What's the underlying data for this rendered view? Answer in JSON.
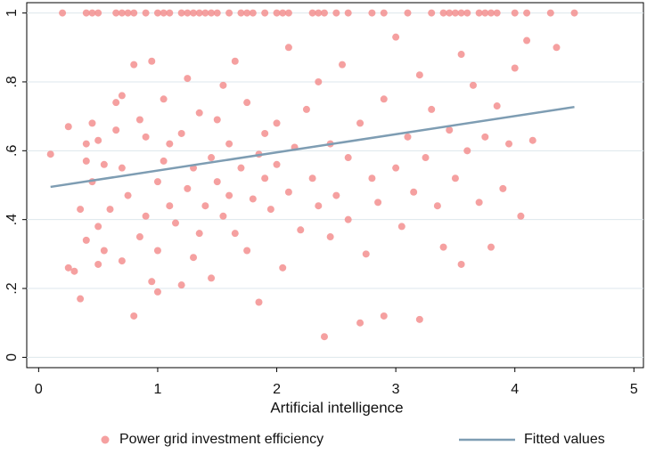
{
  "chart_data": {
    "type": "scatter",
    "xlabel": "Artificial intelligence",
    "xlim": [
      -0.1,
      5.08
    ],
    "ylim": [
      -0.03,
      1.03
    ],
    "xticks": [
      0,
      1,
      2,
      3,
      4,
      5
    ],
    "yticks": [
      0,
      {
        "value": 0.2,
        "label": ".2"
      },
      {
        "value": 0.4,
        "label": ".4"
      },
      {
        "value": 0.6,
        "label": ".6"
      },
      {
        "value": 0.8,
        "label": ".8"
      },
      1
    ],
    "grid": true,
    "legend": "bottom",
    "series": [
      {
        "name": "Power grid investment efficiency",
        "color": "#f38f8f",
        "type": "scatter",
        "x": [
          0.2,
          0.4,
          0.45,
          0.5,
          0.65,
          0.7,
          0.75,
          0.8,
          0.9,
          1.0,
          1.05,
          1.1,
          1.2,
          1.25,
          1.3,
          1.35,
          1.4,
          1.45,
          1.5,
          1.6,
          1.7,
          1.75,
          1.8,
          1.9,
          2.0,
          2.05,
          2.1,
          2.3,
          2.35,
          2.4,
          2.5,
          2.6,
          2.8,
          2.9,
          3.1,
          3.3,
          3.4,
          3.45,
          3.5,
          3.55,
          3.6,
          3.7,
          3.75,
          3.8,
          3.85,
          4.0,
          4.1,
          4.3,
          4.5,
          0.1,
          0.25,
          0.25,
          0.3,
          0.35,
          0.35,
          0.4,
          0.4,
          0.4,
          0.45,
          0.45,
          0.5,
          0.5,
          0.5,
          0.55,
          0.55,
          0.6,
          0.65,
          0.65,
          0.7,
          0.7,
          0.7,
          0.75,
          0.8,
          0.8,
          0.85,
          0.85,
          0.9,
          0.9,
          0.95,
          0.95,
          1.0,
          1.0,
          1.0,
          1.05,
          1.05,
          1.1,
          1.1,
          1.15,
          1.2,
          1.2,
          1.25,
          1.25,
          1.3,
          1.3,
          1.35,
          1.35,
          1.4,
          1.45,
          1.45,
          1.5,
          1.5,
          1.55,
          1.55,
          1.6,
          1.6,
          1.65,
          1.65,
          1.7,
          1.75,
          1.75,
          1.8,
          1.85,
          1.85,
          1.9,
          1.9,
          1.95,
          2.0,
          2.0,
          2.05,
          2.1,
          2.1,
          2.15,
          2.2,
          2.25,
          2.3,
          2.35,
          2.35,
          2.4,
          2.45,
          2.45,
          2.5,
          2.55,
          2.6,
          2.6,
          2.7,
          2.7,
          2.75,
          2.8,
          2.85,
          2.9,
          2.9,
          3.0,
          3.0,
          3.05,
          3.1,
          3.15,
          3.2,
          3.2,
          3.25,
          3.3,
          3.35,
          3.4,
          3.45,
          3.5,
          3.55,
          3.55,
          3.6,
          3.65,
          3.7,
          3.75,
          3.8,
          3.85,
          3.9,
          3.95,
          4.0,
          4.05,
          4.1,
          4.15,
          4.35
        ],
        "values": [
          1,
          1,
          1,
          1,
          1,
          1,
          1,
          1,
          1,
          1,
          1,
          1,
          1,
          1,
          1,
          1,
          1,
          1,
          1,
          1,
          1,
          1,
          1,
          1,
          1,
          1,
          1,
          1,
          1,
          1,
          1,
          1,
          1,
          1,
          1,
          1,
          1,
          1,
          1,
          1,
          1,
          1,
          1,
          1,
          1,
          1,
          1,
          1,
          1,
          0.59,
          0.67,
          0.26,
          0.25,
          0.43,
          0.17,
          0.62,
          0.57,
          0.34,
          0.68,
          0.51,
          0.63,
          0.38,
          0.27,
          0.31,
          0.56,
          0.43,
          0.66,
          0.74,
          0.76,
          0.55,
          0.28,
          0.47,
          0.12,
          0.85,
          0.35,
          0.69,
          0.64,
          0.41,
          0.22,
          0.86,
          0.51,
          0.31,
          0.19,
          0.57,
          0.75,
          0.62,
          0.44,
          0.39,
          0.21,
          0.65,
          0.81,
          0.49,
          0.29,
          0.55,
          0.36,
          0.71,
          0.44,
          0.58,
          0.23,
          0.69,
          0.51,
          0.79,
          0.41,
          0.47,
          0.62,
          0.86,
          0.36,
          0.55,
          0.74,
          0.31,
          0.46,
          0.59,
          0.16,
          0.65,
          0.52,
          0.43,
          0.68,
          0.56,
          0.26,
          0.9,
          0.48,
          0.61,
          0.37,
          0.72,
          0.52,
          0.8,
          0.44,
          0.06,
          0.62,
          0.35,
          0.47,
          0.85,
          0.58,
          0.4,
          0.1,
          0.68,
          0.3,
          0.52,
          0.45,
          0.12,
          0.75,
          0.55,
          0.93,
          0.38,
          0.64,
          0.48,
          0.11,
          0.82,
          0.58,
          0.72,
          0.44,
          0.32,
          0.66,
          0.52,
          0.27,
          0.88,
          0.6,
          0.79,
          0.45,
          0.64,
          0.32,
          0.73,
          0.49,
          0.62,
          0.84,
          0.41,
          0.92,
          0.63,
          0.9
        ]
      },
      {
        "name": "Fitted values",
        "color": "#7e9db3",
        "type": "line",
        "x": [
          0.1,
          4.5
        ],
        "values": [
          0.495,
          0.727
        ]
      }
    ]
  }
}
